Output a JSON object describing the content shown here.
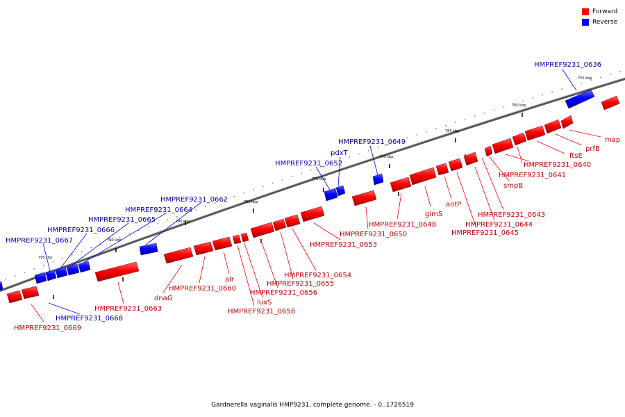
{
  "legend": {
    "forward": {
      "label": "Forward",
      "color": "#ff0000"
    },
    "reverse": {
      "label": "Reverse",
      "color": "#0000ff"
    }
  },
  "caption": "Gardnerella vaginalis HMP9231, complete genome. - 0..1726519",
  "ticks": [
    "755 kbp",
    "760 kbp",
    "765 kbp",
    "770 kbp",
    "775 kbp",
    "780 kbp",
    "785 kbp",
    "790 kbp",
    "795 kbp"
  ],
  "labels": {
    "HMPREF9231_0636": "HMPREF9231_0636",
    "HMPREF9231_0649": "HMPREF9231_0649",
    "pdxT": "pdxT",
    "HMPREF9231_0652": "HMPREF9231_0652",
    "HMPREF9231_0662": "HMPREF9231_0662",
    "HMPREF9231_0664": "HMPREF9231_0664",
    "HMPREF9231_0665": "HMPREF9231_0665",
    "HMPREF9231_0666": "HMPREF9231_0666",
    "HMPREF9231_0667": "HMPREF9231_0667",
    "HMPREF9231_0668": "HMPREF9231_0668",
    "map": "map",
    "prfB": "prfB",
    "ftsE": "ftsE",
    "HMPREF9231_0640": "HMPREF9231_0640",
    "HMPREF9231_0641": "HMPREF9231_0641",
    "smpB": "smpB",
    "HMPREF9231_0643": "HMPREF9231_0643",
    "HMPREF9231_0644": "HMPREF9231_0644",
    "HMPREF9231_0645": "HMPREF9231_0645",
    "aotP": "aotP",
    "glmS": "glmS",
    "HMPREF9231_0648": "HMPREF9231_0648",
    "HMPREF9231_0650": "HMPREF9231_0650",
    "HMPREF9231_0653": "HMPREF9231_0653",
    "HMPREF9231_0654": "HMPREF9231_0654",
    "HMPREF9231_0655": "HMPREF9231_0655",
    "HMPREF9231_0656": "HMPREF9231_0656",
    "luxS": "luxS",
    "HMPREF9231_0658": "HMPREF9231_0658",
    "alr": "alr",
    "HMPREF9231_0660": "HMPREF9231_0660",
    "dnaG": "dnaG",
    "HMPREF9231_0663": "HMPREF9231_0663",
    "HMPREF9231_0669": "HMPREF9231_0669"
  }
}
